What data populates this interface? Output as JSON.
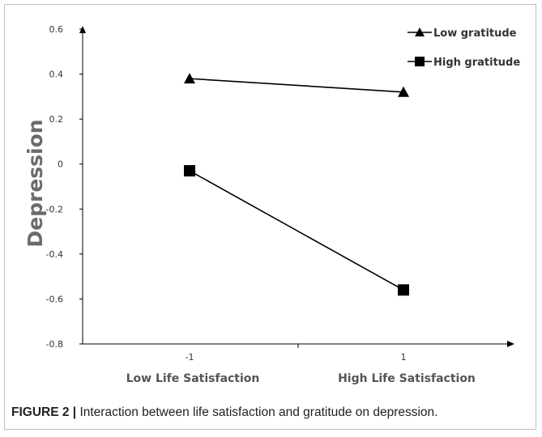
{
  "caption": {
    "label": "FIGURE 2 |",
    "text": " Interaction between life satisfaction and gratitude on depression."
  },
  "chart_data": {
    "type": "line",
    "title": "",
    "xlabel": "",
    "ylabel": "Depression",
    "ylim": [
      -0.8,
      0.6
    ],
    "yticks": [
      0.6,
      0.4,
      0.2,
      0,
      -0.2,
      -0.4,
      -0.6,
      -0.8
    ],
    "ytick_labels": [
      "0.6",
      "0.4",
      "0.2",
      "0",
      "-0.2",
      "-0.4",
      "-0.6",
      "-0.8"
    ],
    "x": [
      -1,
      1
    ],
    "xtick_labels": [
      "-1",
      "1"
    ],
    "categories": [
      "Low Life Satisfaction",
      "High Life Satisfaction"
    ],
    "grid": false,
    "legend_position": "top-right",
    "series": [
      {
        "name": "Low gratitude",
        "marker": "triangle",
        "color": "#000000",
        "values": [
          0.38,
          0.32
        ]
      },
      {
        "name": "High gratitude",
        "marker": "square",
        "color": "#000000",
        "values": [
          -0.03,
          -0.56
        ]
      }
    ]
  }
}
